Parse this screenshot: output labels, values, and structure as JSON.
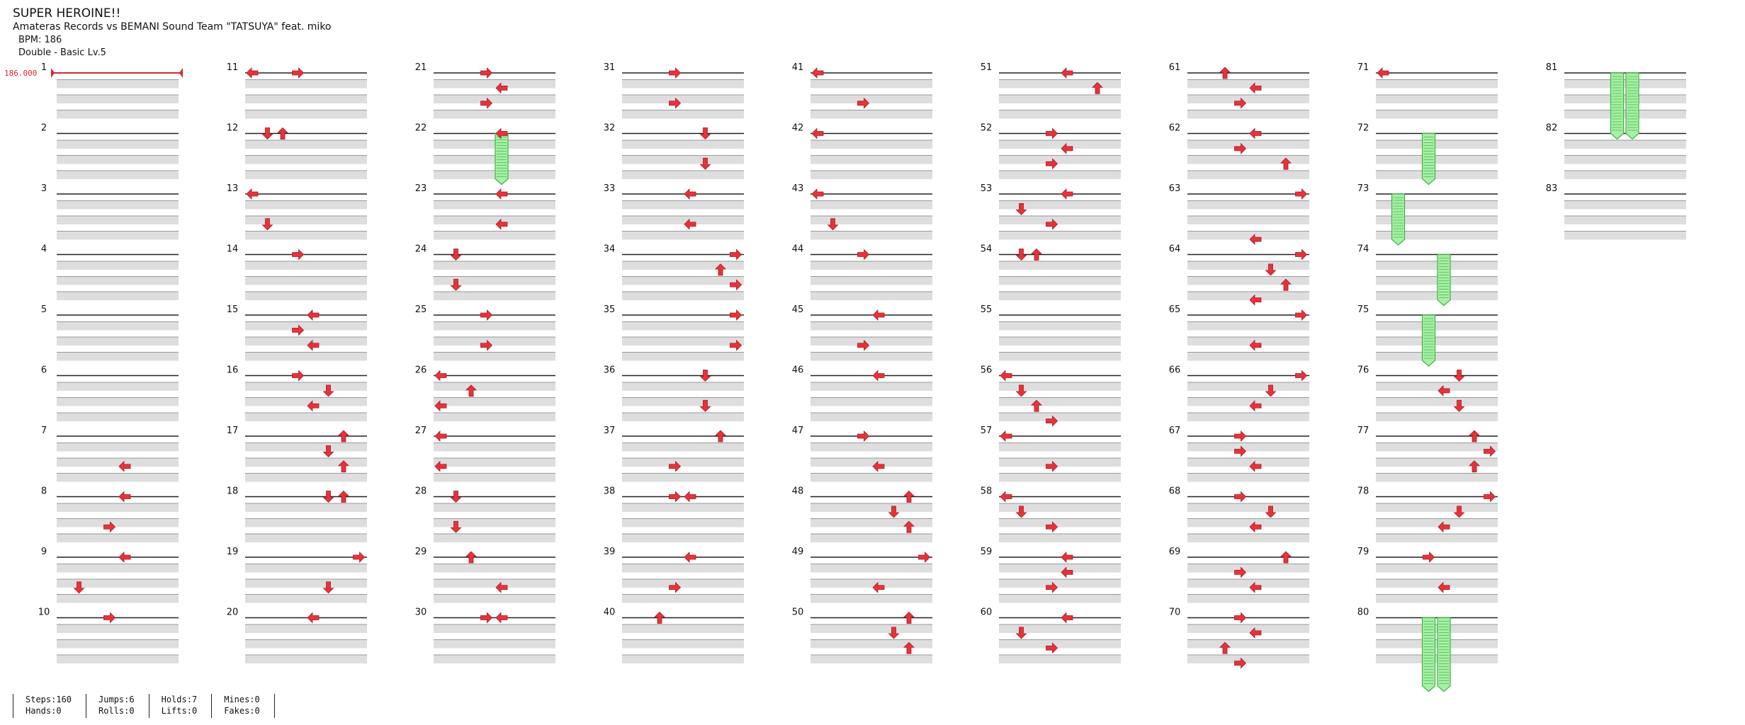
{
  "header": {
    "title": "SUPER HEROINE!!",
    "artist": "Amateras Records vs BEMANI Sound Team \"TATSUYA\" feat. miko",
    "bpm_label": "BPM: 186",
    "difficulty_label": "Double - Basic  Lv.5"
  },
  "bpm_marker": "186.000",
  "colors": {
    "arrow": "#e8323a",
    "hold": "#a6efa6",
    "hold_stroke": "#43b043",
    "lane_gray": "#dedede"
  },
  "lanes": [
    "left",
    "down",
    "up",
    "right",
    "left",
    "down",
    "up",
    "right"
  ],
  "measures": [
    {
      "n": 1,
      "notes": []
    },
    {
      "n": 2,
      "notes": []
    },
    {
      "n": 3,
      "notes": []
    },
    {
      "n": 4,
      "notes": []
    },
    {
      "n": 5,
      "notes": []
    },
    {
      "n": 6,
      "notes": []
    },
    {
      "n": 7,
      "notes": [
        [
          0.5,
          4
        ]
      ]
    },
    {
      "n": 8,
      "notes": [
        [
          0,
          4
        ],
        [
          0.5,
          3
        ]
      ]
    },
    {
      "n": 9,
      "notes": [
        [
          0,
          4
        ],
        [
          0.5,
          1
        ]
      ]
    },
    {
      "n": 10,
      "notes": [
        [
          0,
          3
        ]
      ]
    },
    {
      "n": 11,
      "notes": [
        [
          0,
          0
        ],
        [
          0,
          3
        ]
      ]
    },
    {
      "n": 12,
      "notes": [
        [
          0,
          1
        ],
        [
          0,
          2
        ]
      ]
    },
    {
      "n": 13,
      "notes": [
        [
          0,
          0
        ],
        [
          0.5,
          1
        ]
      ]
    },
    {
      "n": 14,
      "notes": [
        [
          0,
          3
        ]
      ]
    },
    {
      "n": 15,
      "notes": [
        [
          0,
          4
        ],
        [
          0.25,
          3
        ],
        [
          0.5,
          4
        ]
      ]
    },
    {
      "n": 16,
      "notes": [
        [
          0,
          3
        ],
        [
          0.25,
          5
        ],
        [
          0.5,
          4
        ]
      ]
    },
    {
      "n": 17,
      "notes": [
        [
          0,
          6
        ],
        [
          0.25,
          5
        ],
        [
          0.5,
          6
        ]
      ]
    },
    {
      "n": 18,
      "notes": [
        [
          0,
          5
        ],
        [
          0,
          6
        ]
      ]
    },
    {
      "n": 19,
      "notes": [
        [
          0,
          7
        ],
        [
          0.5,
          5
        ]
      ]
    },
    {
      "n": 20,
      "notes": [
        [
          0,
          4
        ]
      ]
    },
    {
      "n": 21,
      "notes": [
        [
          0,
          3
        ],
        [
          0.25,
          4
        ],
        [
          0.5,
          3
        ]
      ]
    },
    {
      "n": 22,
      "notes": [
        [
          0,
          4
        ]
      ]
    },
    {
      "n": 23,
      "notes": [
        [
          0,
          4
        ],
        [
          0.5,
          4
        ]
      ]
    },
    {
      "n": 24,
      "notes": [
        [
          0,
          1
        ],
        [
          0.5,
          1
        ]
      ]
    },
    {
      "n": 25,
      "notes": [
        [
          0,
          3
        ],
        [
          0.5,
          3
        ]
      ]
    },
    {
      "n": 26,
      "notes": [
        [
          0,
          0
        ],
        [
          0.25,
          2
        ],
        [
          0.5,
          0
        ]
      ]
    },
    {
      "n": 27,
      "notes": [
        [
          0,
          0
        ],
        [
          0.5,
          0
        ]
      ]
    },
    {
      "n": 28,
      "notes": [
        [
          0,
          1
        ],
        [
          0.5,
          1
        ]
      ]
    },
    {
      "n": 29,
      "notes": [
        [
          0,
          2
        ],
        [
          0.5,
          4
        ]
      ]
    },
    {
      "n": 30,
      "notes": [
        [
          0,
          3
        ],
        [
          0,
          4
        ]
      ]
    },
    {
      "n": 31,
      "notes": [
        [
          0,
          3
        ],
        [
          0.5,
          3
        ]
      ]
    },
    {
      "n": 32,
      "notes": [
        [
          0,
          5
        ],
        [
          0.5,
          5
        ]
      ]
    },
    {
      "n": 33,
      "notes": [
        [
          0,
          4
        ],
        [
          0.5,
          4
        ]
      ]
    },
    {
      "n": 34,
      "notes": [
        [
          0,
          7
        ],
        [
          0.25,
          6
        ],
        [
          0.5,
          7
        ]
      ]
    },
    {
      "n": 35,
      "notes": [
        [
          0,
          7
        ],
        [
          0.5,
          7
        ]
      ]
    },
    {
      "n": 36,
      "notes": [
        [
          0,
          5
        ],
        [
          0.5,
          5
        ]
      ]
    },
    {
      "n": 37,
      "notes": [
        [
          0,
          6
        ],
        [
          0.5,
          3
        ]
      ]
    },
    {
      "n": 38,
      "notes": [
        [
          0,
          3
        ],
        [
          0,
          4
        ]
      ]
    },
    {
      "n": 39,
      "notes": [
        [
          0,
          4
        ],
        [
          0.5,
          3
        ]
      ]
    },
    {
      "n": 40,
      "notes": [
        [
          0,
          2
        ]
      ]
    },
    {
      "n": 41,
      "notes": [
        [
          0,
          0
        ],
        [
          0.5,
          3
        ]
      ]
    },
    {
      "n": 42,
      "notes": [
        [
          0,
          0
        ]
      ]
    },
    {
      "n": 43,
      "notes": [
        [
          0,
          0
        ],
        [
          0.5,
          1
        ]
      ]
    },
    {
      "n": 44,
      "notes": [
        [
          0,
          3
        ]
      ]
    },
    {
      "n": 45,
      "notes": [
        [
          0,
          4
        ],
        [
          0.5,
          3
        ]
      ]
    },
    {
      "n": 46,
      "notes": [
        [
          0,
          4
        ]
      ]
    },
    {
      "n": 47,
      "notes": [
        [
          0,
          3
        ],
        [
          0.5,
          4
        ]
      ]
    },
    {
      "n": 48,
      "notes": [
        [
          0,
          6
        ],
        [
          0.25,
          5
        ],
        [
          0.5,
          6
        ]
      ]
    },
    {
      "n": 49,
      "notes": [
        [
          0,
          7
        ],
        [
          0.5,
          4
        ]
      ]
    },
    {
      "n": 50,
      "notes": [
        [
          0,
          6
        ],
        [
          0.25,
          5
        ],
        [
          0.5,
          6
        ]
      ]
    },
    {
      "n": 51,
      "notes": [
        [
          0,
          4
        ],
        [
          0.25,
          6
        ]
      ]
    },
    {
      "n": 52,
      "notes": [
        [
          0,
          3
        ],
        [
          0.25,
          4
        ],
        [
          0.5,
          3
        ]
      ]
    },
    {
      "n": 53,
      "notes": [
        [
          0,
          4
        ],
        [
          0.25,
          1
        ],
        [
          0.5,
          3
        ]
      ]
    },
    {
      "n": 54,
      "notes": [
        [
          0,
          2
        ],
        [
          0,
          1
        ]
      ]
    },
    {
      "n": 55,
      "notes": []
    },
    {
      "n": 56,
      "notes": [
        [
          0,
          0
        ],
        [
          0.25,
          1
        ],
        [
          0.5,
          2
        ],
        [
          0.75,
          3
        ]
      ]
    },
    {
      "n": 57,
      "notes": [
        [
          0,
          0
        ],
        [
          0.5,
          3
        ]
      ]
    },
    {
      "n": 58,
      "notes": [
        [
          0,
          0
        ],
        [
          0.25,
          1
        ],
        [
          0.5,
          3
        ]
      ]
    },
    {
      "n": 59,
      "notes": [
        [
          0,
          4
        ],
        [
          0.25,
          4
        ],
        [
          0.5,
          3
        ]
      ]
    },
    {
      "n": 60,
      "notes": [
        [
          0,
          4
        ],
        [
          0.25,
          1
        ],
        [
          0.5,
          3
        ]
      ]
    },
    {
      "n": 61,
      "notes": [
        [
          0,
          2
        ],
        [
          0.25,
          4
        ],
        [
          0.5,
          3
        ]
      ]
    },
    {
      "n": 62,
      "notes": [
        [
          0,
          4
        ],
        [
          0.25,
          3
        ],
        [
          0.5,
          6
        ]
      ]
    },
    {
      "n": 63,
      "notes": [
        [
          0,
          7
        ],
        [
          0.75,
          4
        ]
      ]
    },
    {
      "n": 64,
      "notes": [
        [
          0,
          7
        ],
        [
          0.25,
          5
        ],
        [
          0.5,
          6
        ],
        [
          0.75,
          4
        ]
      ]
    },
    {
      "n": 65,
      "notes": [
        [
          0,
          7
        ],
        [
          0.5,
          4
        ]
      ]
    },
    {
      "n": 66,
      "notes": [
        [
          0,
          7
        ],
        [
          0.25,
          5
        ],
        [
          0.5,
          4
        ]
      ]
    },
    {
      "n": 67,
      "notes": [
        [
          0,
          3
        ],
        [
          0.25,
          3
        ],
        [
          0.5,
          4
        ]
      ]
    },
    {
      "n": 68,
      "notes": [
        [
          0,
          3
        ],
        [
          0.25,
          5
        ],
        [
          0.5,
          4
        ]
      ]
    },
    {
      "n": 69,
      "notes": [
        [
          0,
          6
        ],
        [
          0.25,
          3
        ],
        [
          0.5,
          4
        ]
      ]
    },
    {
      "n": 70,
      "notes": [
        [
          0,
          3
        ],
        [
          0.25,
          4
        ],
        [
          0.5,
          2
        ],
        [
          0.75,
          3
        ]
      ]
    },
    {
      "n": 71,
      "notes": [
        [
          0,
          0
        ]
      ]
    },
    {
      "n": 72,
      "notes": []
    },
    {
      "n": 73,
      "notes": []
    },
    {
      "n": 74,
      "notes": []
    },
    {
      "n": 75,
      "notes": []
    },
    {
      "n": 76,
      "notes": [
        [
          0,
          5
        ],
        [
          0.25,
          4
        ],
        [
          0.5,
          5
        ]
      ]
    },
    {
      "n": 77,
      "notes": [
        [
          0,
          6
        ],
        [
          0.25,
          7
        ],
        [
          0.5,
          6
        ]
      ]
    },
    {
      "n": 78,
      "notes": [
        [
          0,
          7
        ],
        [
          0.25,
          5
        ],
        [
          0.5,
          4
        ]
      ]
    },
    {
      "n": 79,
      "notes": [
        [
          0,
          3
        ],
        [
          0.5,
          4
        ]
      ]
    },
    {
      "n": 80,
      "notes": []
    },
    {
      "n": 81,
      "notes": []
    },
    {
      "n": 82,
      "notes": []
    },
    {
      "n": 83,
      "notes": []
    }
  ],
  "holds": [
    {
      "measure": 22,
      "lane": 4,
      "start": 0,
      "length": 0.75
    },
    {
      "measure": 72,
      "lane": 3,
      "start": 0,
      "length": 0.75
    },
    {
      "measure": 73,
      "lane": 1,
      "start": 0,
      "length": 0.75
    },
    {
      "measure": 74,
      "lane": 4,
      "start": 0,
      "length": 0.75
    },
    {
      "measure": 75,
      "lane": 3,
      "start": 0,
      "length": 0.75
    },
    {
      "measure": 80,
      "lane": 3,
      "start": 0,
      "length": 1.125
    },
    {
      "measure": 80,
      "lane": 4,
      "start": 0,
      "length": 1.125
    },
    {
      "measure": 81,
      "lane": 3,
      "start": 0,
      "length": 1.0
    },
    {
      "measure": 81,
      "lane": 4,
      "start": 0,
      "length": 1.0
    }
  ],
  "footer": [
    [
      "Steps:160",
      "Hands:0"
    ],
    [
      "Jumps:6",
      "Rolls:0"
    ],
    [
      "Holds:7",
      "Lifts:0"
    ],
    [
      "Mines:0",
      "Fakes:0"
    ]
  ]
}
